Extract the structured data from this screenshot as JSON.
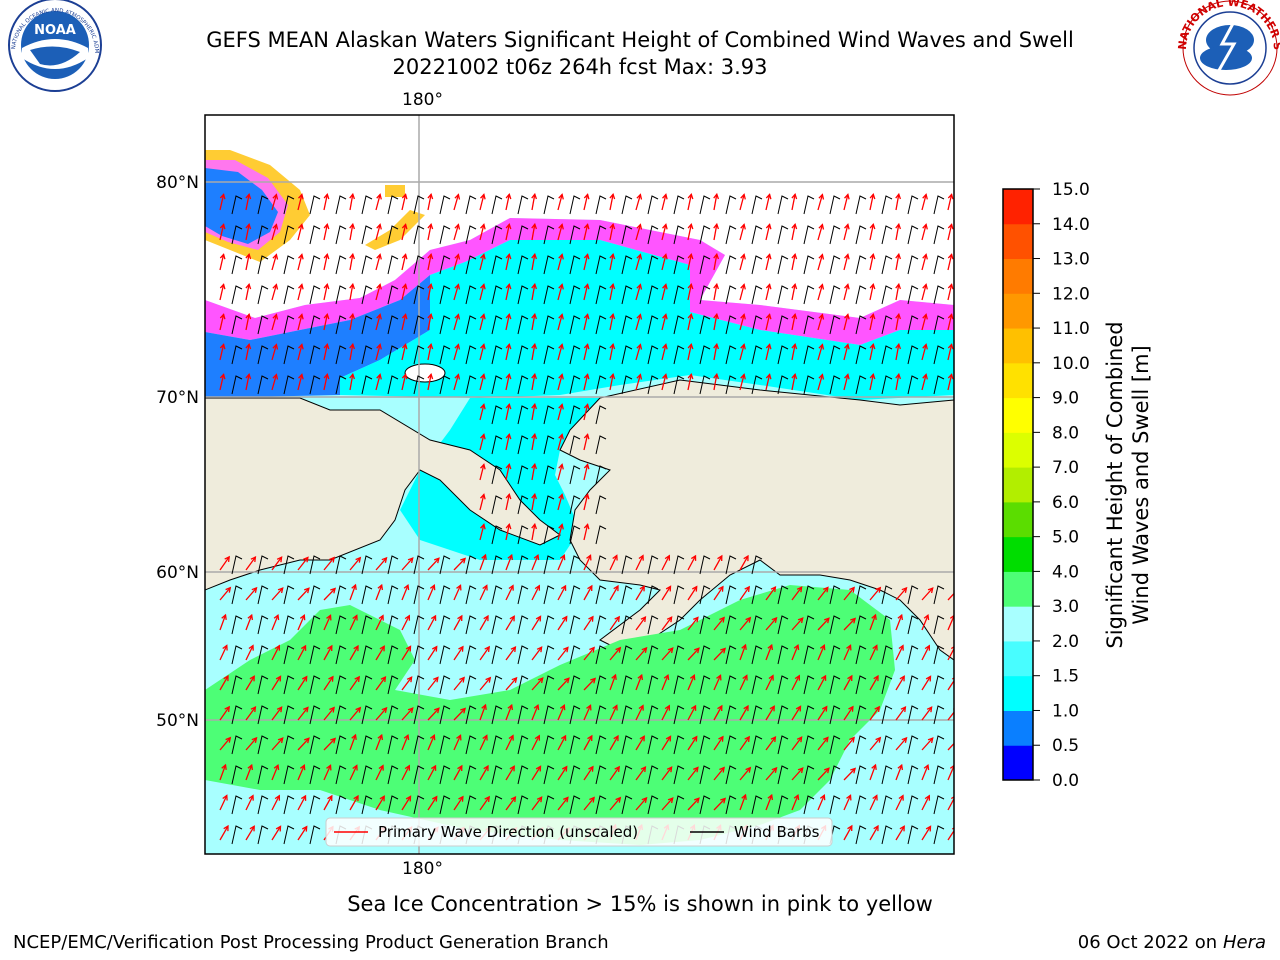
{
  "header": {
    "title_line1": "GEFS MEAN Alaskan Waters Significant Height of Combined Wind Waves and Swell",
    "title_line2": "20221002 t06z 264h fcst   Max: 3.93"
  },
  "logos": {
    "left": {
      "name": "noaa-logo",
      "text": "NOAA",
      "ring_text": "NATIONAL OCEANIC AND ATMOSPHERIC ADMINISTRATION · U.S. DEPARTMENT OF COMMERCE"
    },
    "right": {
      "name": "nws-logo",
      "ring_text": "NATIONAL WEATHER SERVICE"
    }
  },
  "map": {
    "lon_labels": [
      "180°",
      "180°"
    ],
    "lat_labels": [
      "80°N",
      "70°N",
      "60°N",
      "50°N"
    ],
    "legend": {
      "items": [
        {
          "label": "Primary Wave Direction (unscaled)",
          "color": "#ff0000"
        },
        {
          "label": "Wind Barbs",
          "color": "#000000"
        }
      ]
    },
    "colors": {
      "land": "#efecdc",
      "sea_ice_edge": [
        "#ff33ff",
        "#ff99cc",
        "#ffcc33",
        "#ffff33"
      ],
      "water_low": "#a8ffff",
      "water_mid": "#00ffff",
      "water_high": "#4dff73",
      "water_deep": "#1e7fff"
    }
  },
  "colorbar": {
    "label_line1": "Significant Height of Combined",
    "label_line2": "Wind Waves and Swell [m]",
    "ticks": [
      "0.0",
      "0.5",
      "1.0",
      "1.5",
      "2.0",
      "3.0",
      "4.0",
      "5.0",
      "6.0",
      "7.0",
      "8.0",
      "9.0",
      "10.0",
      "11.0",
      "12.0",
      "13.0",
      "14.0",
      "15.0"
    ],
    "colors": [
      "#0000ff",
      "#0a7fff",
      "#00ffff",
      "#48fdff",
      "#a8ffff",
      "#4dfe76",
      "#00dd00",
      "#5bdd00",
      "#b2ee00",
      "#dcff00",
      "#ffff00",
      "#ffe100",
      "#ffc000",
      "#ff9800",
      "#ff7b00",
      "#ff5100",
      "#ff2200"
    ]
  },
  "footer": {
    "note": "Sea Ice Concentration > 15% is shown in pink to yellow",
    "credit_left": "NCEP/EMC/Verification Post Processing Product Generation Branch",
    "credit_right_date": "06 Oct 2022 on ",
    "credit_right_machine": "Hera"
  }
}
